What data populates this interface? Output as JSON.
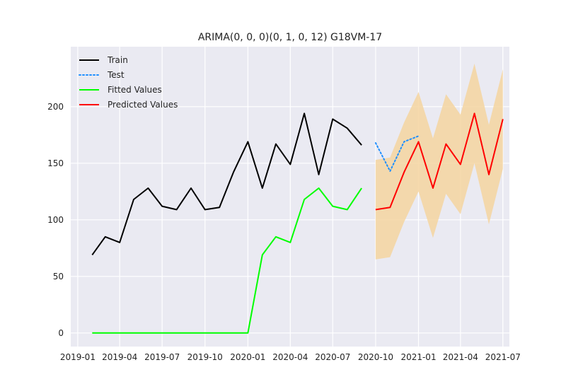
{
  "chart_data": {
    "type": "line",
    "title": "ARIMA(0, 0, 0)(0, 1, 0, 12) G18VM-17",
    "xlabel": "",
    "ylabel": "",
    "grid": true,
    "legend_position": "top-left",
    "ylim": [
      -12,
      253
    ],
    "xlim": [
      "2018-12-17",
      "2021-07-15"
    ],
    "y_ticks": [
      0,
      50,
      100,
      150,
      200
    ],
    "x_ticks": [
      "2019-01",
      "2019-04",
      "2019-07",
      "2019-10",
      "2020-01",
      "2020-04",
      "2020-07",
      "2020-10",
      "2021-01",
      "2021-04",
      "2021-07"
    ],
    "colors": {
      "train": "#000000",
      "test": "#1f8fff",
      "fitted": "#00ff00",
      "predicted": "#ff0000",
      "confidence_band": "#f5d5a0",
      "plot_background": "#eaeaf2",
      "grid": "#ffffff"
    },
    "series": [
      {
        "name": "Train",
        "style": "solid",
        "x": [
          "2019-02-01",
          "2019-03-01",
          "2019-04-01",
          "2019-05-01",
          "2019-06-01",
          "2019-07-01",
          "2019-08-01",
          "2019-09-01",
          "2019-10-01",
          "2019-11-01",
          "2019-12-01",
          "2020-01-01",
          "2020-02-01",
          "2020-03-01",
          "2020-04-01",
          "2020-05-01",
          "2020-06-01",
          "2020-07-01",
          "2020-08-01",
          "2020-09-01"
        ],
        "values": [
          69,
          85,
          80,
          118,
          128,
          112,
          109,
          128,
          109,
          111,
          142,
          169,
          128,
          167,
          149,
          194,
          140,
          189,
          181,
          166
        ]
      },
      {
        "name": "Test",
        "style": "dotted",
        "x": [
          "2020-10-01",
          "2020-11-01",
          "2020-12-01",
          "2021-01-01"
        ],
        "values": [
          168,
          143,
          169,
          174
        ]
      },
      {
        "name": "Fitted Values",
        "style": "solid",
        "x": [
          "2019-02-01",
          "2019-03-01",
          "2019-04-01",
          "2019-05-01",
          "2019-06-01",
          "2019-07-01",
          "2019-08-01",
          "2019-09-01",
          "2019-10-01",
          "2019-11-01",
          "2019-12-01",
          "2020-01-01",
          "2020-02-01",
          "2020-03-01",
          "2020-04-01",
          "2020-05-01",
          "2020-06-01",
          "2020-07-01",
          "2020-08-01",
          "2020-09-01"
        ],
        "values": [
          0,
          0,
          0,
          0,
          0,
          0,
          0,
          0,
          0,
          0,
          0,
          0,
          69,
          85,
          80,
          118,
          128,
          112,
          109,
          128
        ]
      },
      {
        "name": "Predicted Values",
        "style": "solid",
        "x": [
          "2020-10-01",
          "2020-11-01",
          "2020-12-01",
          "2021-01-01",
          "2021-02-01",
          "2021-03-01",
          "2021-04-01",
          "2021-05-01",
          "2021-06-01",
          "2021-07-01"
        ],
        "values": [
          109,
          111,
          142,
          169,
          128,
          167,
          149,
          194,
          140,
          189
        ],
        "upper": [
          153,
          155,
          186,
          213,
          172,
          211,
          193,
          238,
          184,
          233
        ],
        "lower": [
          65,
          67,
          98,
          125,
          84,
          123,
          105,
          150,
          96,
          145
        ]
      }
    ]
  }
}
